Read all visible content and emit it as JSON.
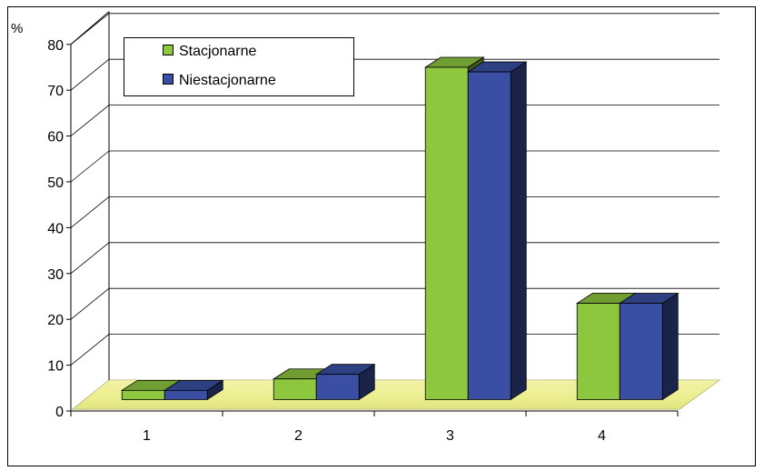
{
  "chart_data": {
    "type": "bar",
    "categories": [
      "1",
      "2",
      "3",
      "4"
    ],
    "series": [
      {
        "name": "Stacjonarne",
        "values": [
          2,
          4.5,
          72.5,
          21
        ],
        "color": "#8DC63F"
      },
      {
        "name": "Niestacjonarne",
        "values": [
          2,
          5.5,
          71.5,
          21
        ],
        "color": "#3A4FA3"
      }
    ],
    "y_unit": "%",
    "ylim": [
      0,
      80
    ],
    "yticks": [
      "0",
      "10",
      "20",
      "30",
      "40",
      "50",
      "60",
      "70",
      "80"
    ],
    "legend_placement": "top-left",
    "grid": true,
    "floor_color": "#F0F09A",
    "three_d": true
  }
}
